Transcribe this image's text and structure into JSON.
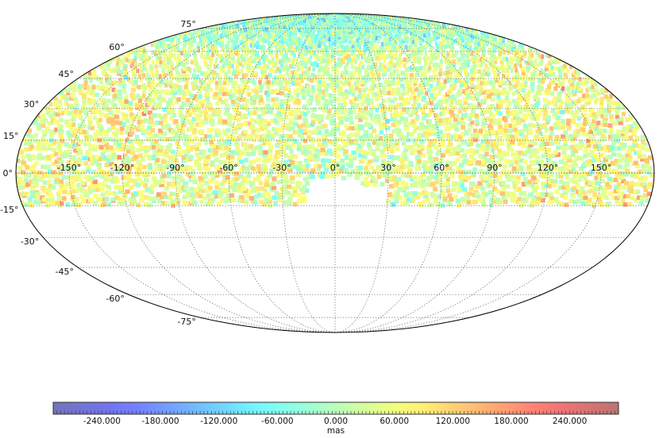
{
  "chart_data": {
    "type": "heatmap",
    "projection": "mollweide",
    "grid": true,
    "longitude_tick_labels": [
      "-150°",
      "-120°",
      "-90°",
      "-60°",
      "-30°",
      "0°",
      "30°",
      "60°",
      "90°",
      "120°",
      "150°"
    ],
    "longitude_ticks": [
      -150,
      -120,
      -90,
      -60,
      -30,
      0,
      30,
      60,
      90,
      120,
      150
    ],
    "latitude_tick_labels": [
      "75°",
      "60°",
      "45°",
      "30°",
      "15°",
      "0°",
      "-15°",
      "-30°",
      "-45°",
      "-60°",
      "-75°"
    ],
    "latitude_ticks": [
      75,
      60,
      45,
      30,
      15,
      0,
      -15,
      -30,
      -45,
      -60,
      -75
    ],
    "coverage": {
      "declination_min_approx": -15,
      "coverage_gaps": [
        {
          "lon_min": -15,
          "lon_max": 15,
          "lat_max": -3
        },
        {
          "lon_min": 15,
          "lon_max": 30,
          "lat_max": -6
        }
      ],
      "notch_examples": [
        {
          "lon_min": -82,
          "lon_max": -76,
          "lat_min": -15,
          "lat_max": -11
        }
      ]
    },
    "colorbar": {
      "label": "mas",
      "tick_labels": [
        "-240.000",
        "-180.000",
        "-120.000",
        "-60.000",
        "0.000",
        "60.000",
        "120.000",
        "180.000",
        "240.000"
      ],
      "ticks": [
        -240,
        -180,
        -120,
        -60,
        0,
        60,
        120,
        180,
        240
      ],
      "range": [
        -290,
        290
      ],
      "colormap": "jet-like (alpha 0.55)"
    }
  }
}
